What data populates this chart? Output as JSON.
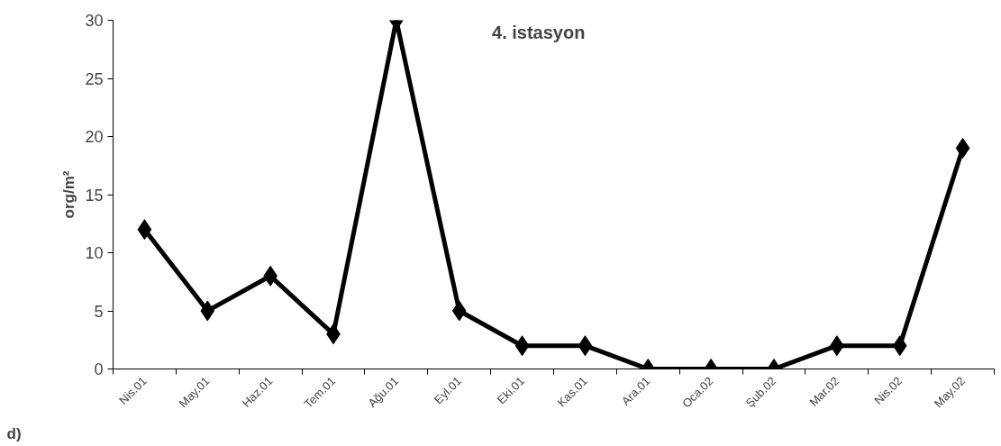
{
  "chart_data": {
    "type": "line",
    "title": "4. istasyon",
    "ylabel": "org/m²",
    "categories": [
      "Nis.01",
      "May.01",
      "Haz.01",
      "Tem.01",
      "Ağu.01",
      "Eyl.01",
      "Eki.01",
      "Kas.01",
      "Ara.01",
      "Oca.02",
      "Şub.02",
      "Mar.02",
      "Nis.02",
      "May.02"
    ],
    "values": [
      12,
      5,
      8,
      3,
      30,
      5,
      2,
      2,
      0,
      0,
      0,
      2,
      2,
      19
    ],
    "color": "#000000",
    "marker": "diamond",
    "line_style": "solid",
    "ylim": [
      0,
      30
    ],
    "yticks": [
      0,
      5,
      10,
      15,
      20,
      25,
      30
    ],
    "grid": false,
    "annotations": [
      "d)"
    ]
  }
}
